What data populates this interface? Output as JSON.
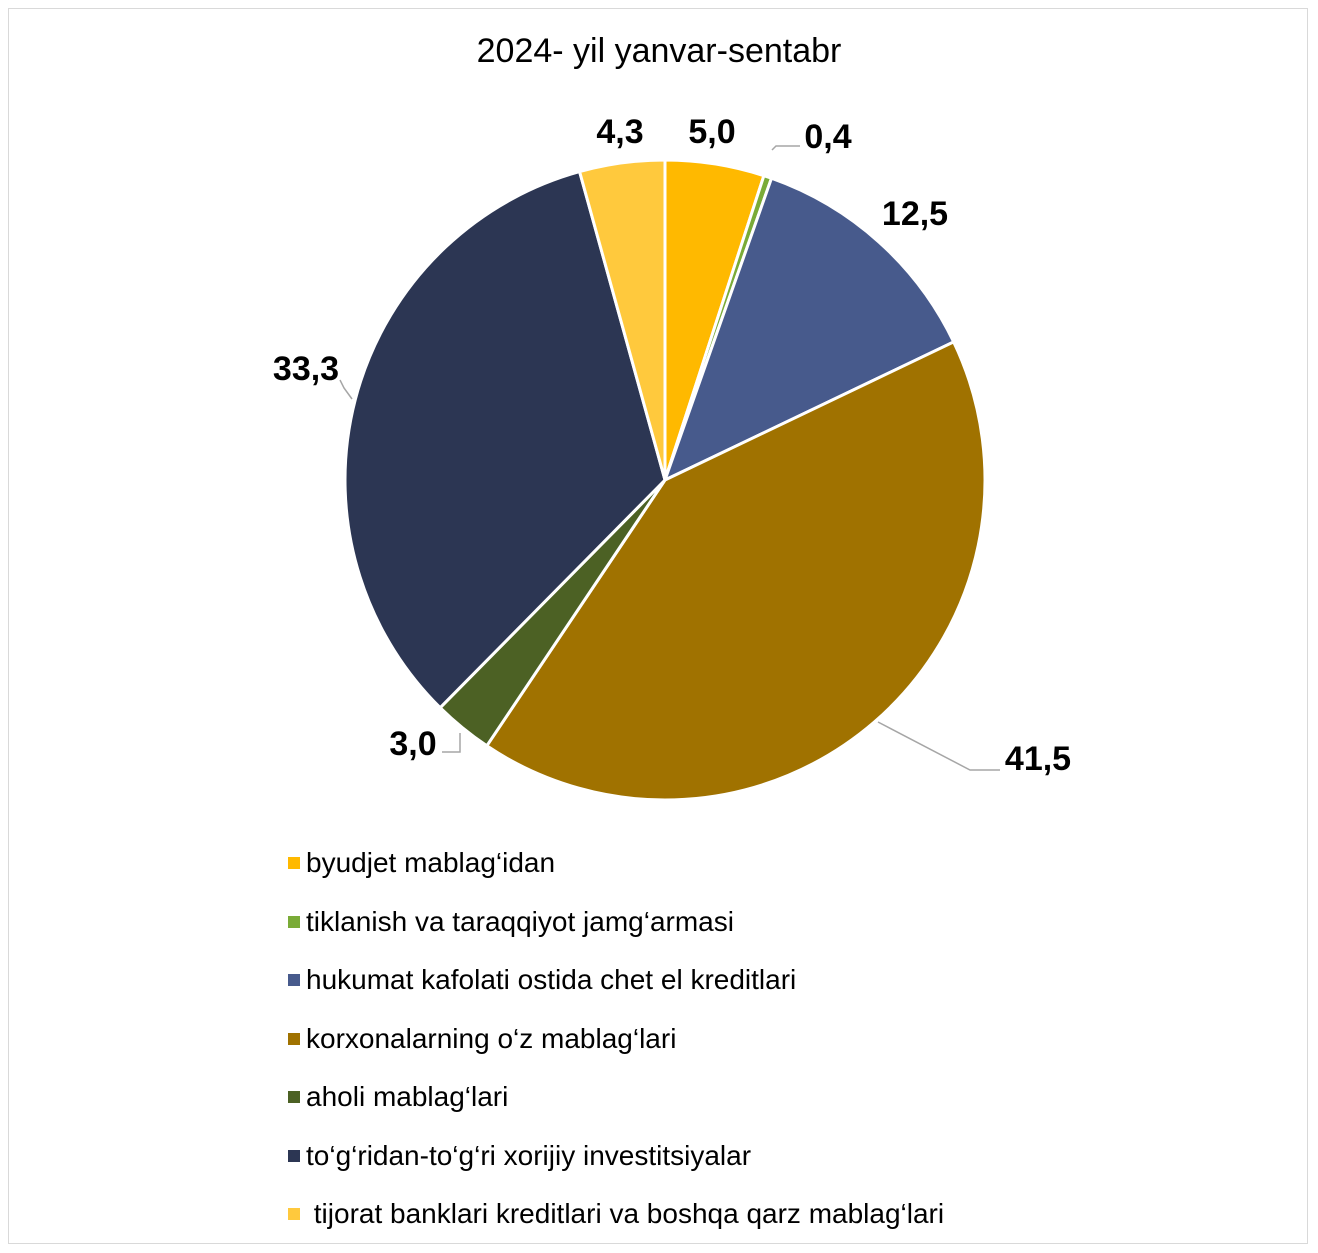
{
  "chart_data": {
    "type": "pie",
    "title": "2024- yil yanvar-sentabr",
    "slices": [
      {
        "name": "byudjet mablag‘idan",
        "label": "5,0",
        "value": 5.0,
        "color": "#ffb900"
      },
      {
        "name": "tiklanish va taraqqiyot jamg‘armasi",
        "label": "0,4",
        "value": 0.4,
        "color": "#7aab37"
      },
      {
        "name": "hukumat kafolati ostida chet el kreditlari",
        "label": "12,5",
        "value": 12.5,
        "color": "#475a8c"
      },
      {
        "name": "korxonalarning o‘z mablag‘lari",
        "label": "41,5",
        "value": 41.5,
        "color": "#a07200"
      },
      {
        "name": "aholi mablag‘lari",
        "label": "3,0",
        "value": 3.0,
        "color": "#4c6124"
      },
      {
        "name": "to‘g‘ridan-to‘g‘ri xorijiy investitsiyalar",
        "label": "33,3",
        "value": 33.3,
        "color": "#2c3653"
      },
      {
        "name": " tijorat banklari kreditlari va boshqa qarz mablag‘lari",
        "label": "4,3",
        "value": 4.3,
        "color": "#ffc93d"
      }
    ],
    "legend_position": "bottom"
  }
}
